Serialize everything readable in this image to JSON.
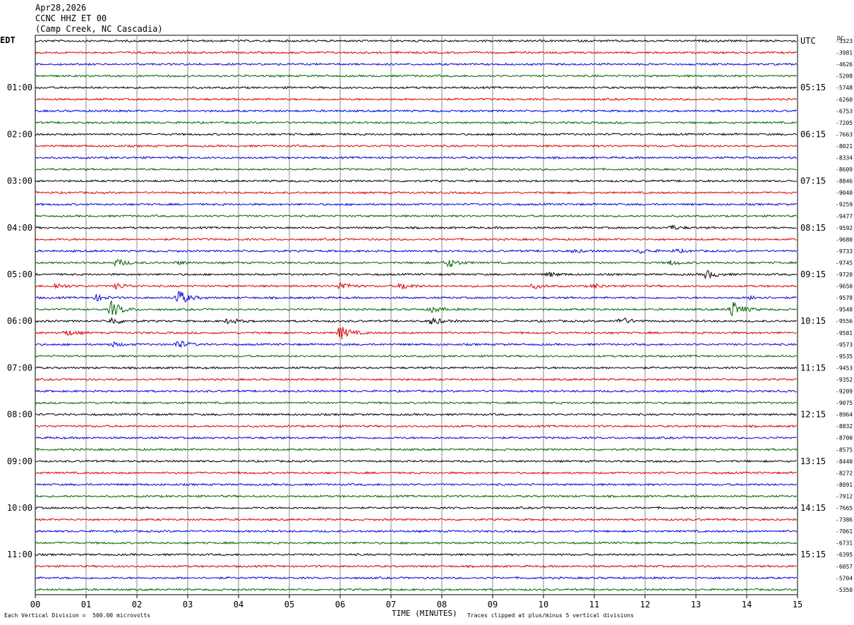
{
  "header": {
    "date": "Apr28,2026",
    "station": "CCNC HHZ ET 00",
    "location": "(Camp Creek, NC Cascadia)"
  },
  "left_zone": "EDT",
  "right_zone": "UTC",
  "dc_label": "DC",
  "footer": {
    "left": "Each Vertical Division =  500.00 microvolts",
    "center": "TIME (MINUTES)",
    "right": "Traces clipped at plus/minus 5 vertical divisions"
  },
  "chart_data": {
    "type": "line",
    "subtype": "helicorder",
    "xlabel": "TIME (MINUTES)",
    "xlim": [
      0,
      15
    ],
    "x_ticks": [
      "00",
      "01",
      "02",
      "03",
      "04",
      "05",
      "06",
      "07",
      "08",
      "09",
      "10",
      "11",
      "12",
      "13",
      "14",
      "15"
    ],
    "left_time_labels": [
      {
        "row": 4,
        "label": "01:00"
      },
      {
        "row": 8,
        "label": "02:00"
      },
      {
        "row": 12,
        "label": "03:00"
      },
      {
        "row": 16,
        "label": "04:00"
      },
      {
        "row": 20,
        "label": "05:00"
      },
      {
        "row": 24,
        "label": "06:00"
      },
      {
        "row": 28,
        "label": "07:00"
      },
      {
        "row": 32,
        "label": "08:00"
      },
      {
        "row": 36,
        "label": "09:00"
      },
      {
        "row": 40,
        "label": "10:00"
      },
      {
        "row": 44,
        "label": "11:00"
      }
    ],
    "right_time_labels": [
      {
        "row": 0,
        "label": "UTC"
      },
      {
        "row": 4,
        "label": "05:15"
      },
      {
        "row": 8,
        "label": "06:15"
      },
      {
        "row": 12,
        "label": "07:15"
      },
      {
        "row": 16,
        "label": "08:15"
      },
      {
        "row": 20,
        "label": "09:15"
      },
      {
        "row": 24,
        "label": "10:15"
      },
      {
        "row": 28,
        "label": "11:15"
      },
      {
        "row": 32,
        "label": "12:15"
      },
      {
        "row": 36,
        "label": "13:15"
      },
      {
        "row": 40,
        "label": "14:15"
      },
      {
        "row": 44,
        "label": "15:15"
      }
    ],
    "dc_offsets": [
      -3323,
      -3981,
      -4626,
      -5208,
      -5748,
      -6260,
      -6753,
      -7205,
      -7663,
      -8021,
      -8334,
      -8609,
      -8846,
      -9040,
      -9259,
      -9477,
      -9592,
      -9680,
      -9733,
      -9745,
      -9720,
      -9650,
      -9578,
      -9548,
      -9556,
      -9581,
      -9573,
      -9535,
      -9453,
      -9352,
      -9209,
      -9075,
      -8964,
      -8832,
      -8700,
      -8575,
      -8440,
      -8272,
      -8091,
      -7912,
      -7665,
      -7386,
      -7061,
      -6731,
      -6395,
      -6057,
      -5704,
      -5350
    ],
    "trace_colors": [
      "#000000",
      "#dd0000",
      "#0000dd",
      "#006400"
    ],
    "events": [
      {
        "row": 16,
        "minute": 12.5,
        "amplitude": 3
      },
      {
        "row": 18,
        "minute": 10.6,
        "amplitude": 2
      },
      {
        "row": 18,
        "minute": 11.9,
        "amplitude": 3
      },
      {
        "row": 18,
        "minute": 12.6,
        "amplitude": 2
      },
      {
        "row": 19,
        "minute": 1.6,
        "amplitude": 5
      },
      {
        "row": 19,
        "minute": 2.8,
        "amplitude": 2
      },
      {
        "row": 19,
        "minute": 8.1,
        "amplitude": 7
      },
      {
        "row": 19,
        "minute": 12.5,
        "amplitude": 3
      },
      {
        "row": 20,
        "minute": 10.1,
        "amplitude": 3
      },
      {
        "row": 20,
        "minute": 13.2,
        "amplitude": 6
      },
      {
        "row": 21,
        "minute": 0.4,
        "amplitude": 4
      },
      {
        "row": 21,
        "minute": 1.6,
        "amplitude": 4
      },
      {
        "row": 21,
        "minute": 6.0,
        "amplitude": 6
      },
      {
        "row": 21,
        "minute": 7.2,
        "amplitude": 5
      },
      {
        "row": 21,
        "minute": 9.8,
        "amplitude": 3
      },
      {
        "row": 21,
        "minute": 11.0,
        "amplitude": 3
      },
      {
        "row": 22,
        "minute": 1.2,
        "amplitude": 4
      },
      {
        "row": 22,
        "minute": 2.8,
        "amplitude": 12
      },
      {
        "row": 22,
        "minute": 14.1,
        "amplitude": 3
      },
      {
        "row": 23,
        "minute": 1.5,
        "amplitude": 12
      },
      {
        "row": 23,
        "minute": 7.8,
        "amplitude": 4
      },
      {
        "row": 23,
        "minute": 13.7,
        "amplitude": 13
      },
      {
        "row": 24,
        "minute": 1.5,
        "amplitude": 5
      },
      {
        "row": 24,
        "minute": 3.8,
        "amplitude": 4
      },
      {
        "row": 24,
        "minute": 7.8,
        "amplitude": 5
      },
      {
        "row": 24,
        "minute": 11.5,
        "amplitude": 6
      },
      {
        "row": 25,
        "minute": 0.6,
        "amplitude": 4
      },
      {
        "row": 25,
        "minute": 6.0,
        "amplitude": 10
      },
      {
        "row": 26,
        "minute": 1.5,
        "amplitude": 3
      },
      {
        "row": 26,
        "minute": 2.8,
        "amplitude": 6
      }
    ]
  }
}
